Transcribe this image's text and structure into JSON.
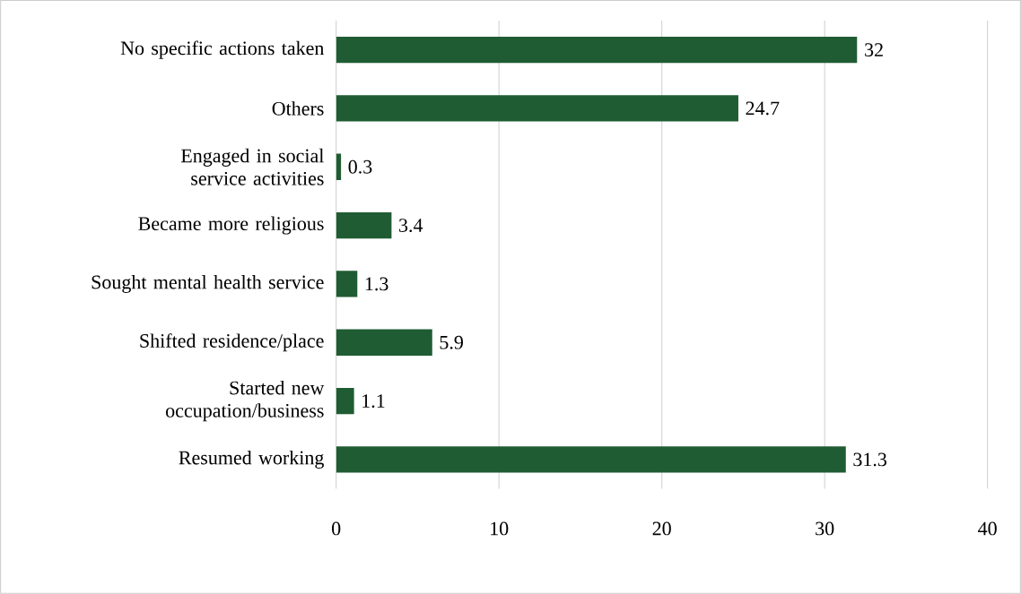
{
  "chart_data": {
    "type": "bar",
    "orientation": "horizontal",
    "categories": [
      "No specific actions taken",
      "Others",
      "Engaged in social service activities",
      "Became more religious",
      "Sought mental health service",
      "Shifted residence/place",
      "Started new occupation/business",
      "Resumed working"
    ],
    "values": [
      32,
      24.7,
      0.3,
      3.4,
      1.3,
      5.9,
      1.1,
      31.3
    ],
    "color": "#1f5c33",
    "xlim": [
      0,
      40
    ],
    "xticks": [
      0,
      10,
      20,
      30,
      40
    ],
    "grid": "x",
    "data_labels": true
  }
}
